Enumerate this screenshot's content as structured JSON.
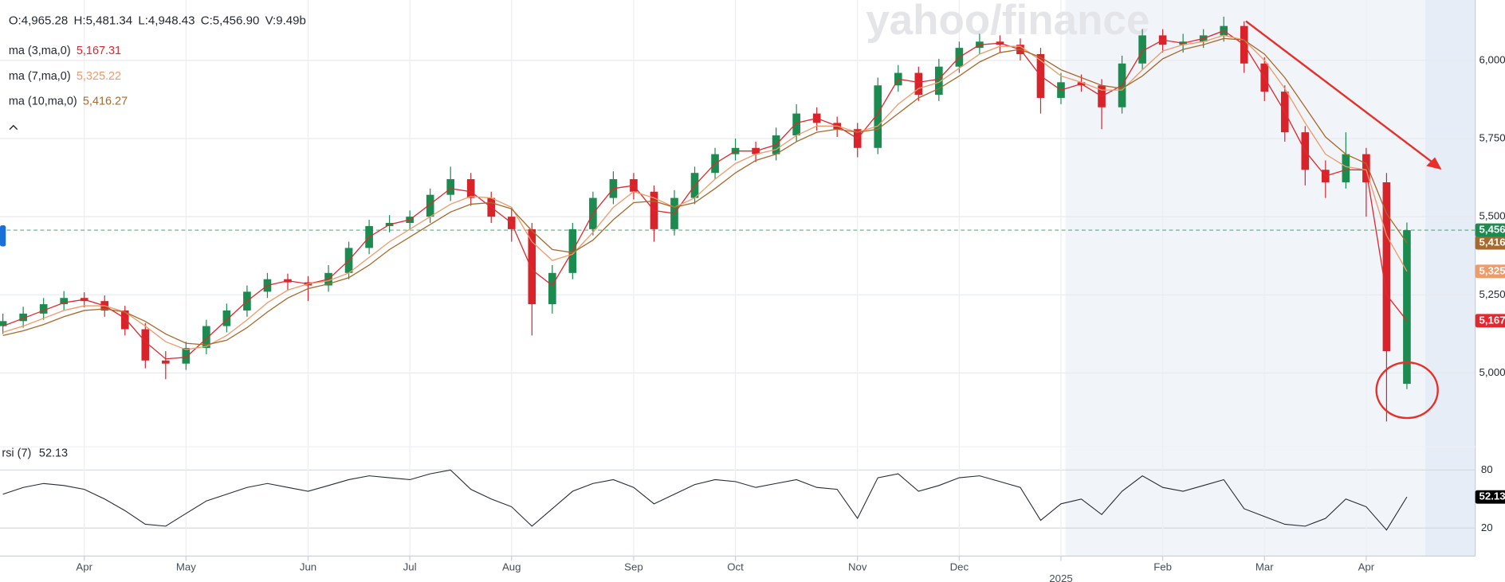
{
  "chart_data": {
    "type": "candlestick",
    "watermark": "yahoo/finance",
    "ohlcv_labels": [
      "O:4,965.28",
      "H:5,481.34",
      "L:4,948.43",
      "C:5,456.90",
      "V:9.49b"
    ],
    "categories": [
      null,
      null,
      null,
      null,
      "Apr",
      null,
      null,
      null,
      null,
      "May",
      null,
      null,
      null,
      null,
      null,
      "Jun",
      null,
      null,
      null,
      null,
      "Jul",
      null,
      null,
      null,
      null,
      "Aug",
      null,
      null,
      null,
      null,
      null,
      "Sep",
      null,
      null,
      null,
      null,
      "Oct",
      null,
      null,
      null,
      null,
      null,
      "Nov",
      null,
      null,
      null,
      null,
      "Dec",
      null,
      null,
      null,
      null,
      "2025",
      null,
      null,
      null,
      null,
      "Feb",
      null,
      null,
      null,
      null,
      "Mar",
      null,
      null,
      null,
      null,
      "Apr",
      null,
      null
    ],
    "open": [
      5150,
      5166,
      5190,
      5220,
      5240,
      5230,
      5200,
      5140,
      5040,
      5030,
      5080,
      5150,
      5200,
      5260,
      5300,
      5290,
      5280,
      5320,
      5400,
      5470,
      5480,
      5500,
      5570,
      5620,
      5560,
      5500,
      5460,
      5220,
      5320,
      5460,
      5560,
      5620,
      5580,
      5460,
      5560,
      5640,
      5700,
      5720,
      5700,
      5760,
      5830,
      5800,
      5780,
      5720,
      5920,
      5960,
      5890,
      5980,
      6040,
      6060,
      6050,
      6020,
      5880,
      5930,
      5920,
      5850,
      5990,
      6080,
      6050,
      6060,
      6080,
      6110,
      5990,
      5900,
      5770,
      5650,
      5610,
      5700,
      5610,
      4965.28
    ],
    "high": [
      5190,
      5212,
      5240,
      5262,
      5258,
      5248,
      5215,
      5160,
      5070,
      5100,
      5170,
      5222,
      5280,
      5320,
      5318,
      5310,
      5345,
      5420,
      5490,
      5505,
      5520,
      5590,
      5660,
      5640,
      5580,
      5530,
      5480,
      5345,
      5480,
      5580,
      5645,
      5640,
      5600,
      5585,
      5660,
      5720,
      5750,
      5740,
      5785,
      5860,
      5850,
      5820,
      5800,
      5945,
      5985,
      5980,
      6005,
      6060,
      6085,
      6080,
      6070,
      6040,
      5960,
      5955,
      5940,
      6015,
      6100,
      6100,
      6085,
      6100,
      6140,
      6125,
      6010,
      5920,
      5790,
      5680,
      5770,
      5720,
      5640,
      5481.34
    ],
    "low": [
      5125,
      5145,
      5170,
      5200,
      5210,
      5180,
      5120,
      5015,
      4980,
      5010,
      5060,
      5130,
      5180,
      5240,
      5265,
      5230,
      5260,
      5300,
      5380,
      5450,
      5460,
      5480,
      5550,
      5535,
      5480,
      5420,
      5120,
      5190,
      5300,
      5440,
      5540,
      5555,
      5420,
      5440,
      5540,
      5620,
      5680,
      5675,
      5680,
      5740,
      5775,
      5755,
      5690,
      5700,
      5900,
      5870,
      5870,
      5960,
      6020,
      6025,
      6000,
      5830,
      5860,
      5900,
      5780,
      5830,
      5970,
      6025,
      6025,
      6040,
      6060,
      5960,
      5870,
      5740,
      5600,
      5560,
      5590,
      5500,
      4845,
      4948.43
    ],
    "close": [
      5166,
      5190,
      5220,
      5240,
      5230,
      5200,
      5140,
      5040,
      5030,
      5080,
      5150,
      5200,
      5260,
      5300,
      5290,
      5280,
      5320,
      5400,
      5470,
      5480,
      5500,
      5570,
      5620,
      5560,
      5500,
      5460,
      5220,
      5320,
      5460,
      5560,
      5620,
      5580,
      5460,
      5560,
      5640,
      5700,
      5720,
      5700,
      5760,
      5830,
      5800,
      5780,
      5720,
      5920,
      5960,
      5890,
      5980,
      6040,
      6060,
      6050,
      6020,
      5880,
      5930,
      5920,
      5850,
      5990,
      6080,
      6050,
      6060,
      6080,
      6110,
      5990,
      5900,
      5770,
      5650,
      5610,
      5700,
      5610,
      5070,
      5456.9
    ],
    "close_label": "5,456.90",
    "up_color": "#1b8b4f",
    "down_color": "#d8232a",
    "ylim": [
      4767,
      6193
    ],
    "yticks": [
      {
        "value": 5000,
        "label": "5,000"
      },
      {
        "value": 5250,
        "label": "5,250"
      },
      {
        "value": 5500,
        "label": "5,500"
      },
      {
        "value": 5750,
        "label": "5,750"
      },
      {
        "value": 6000,
        "label": "6,000"
      }
    ],
    "grid": true,
    "series": [
      {
        "name": "ma (3,ma,0)",
        "color": "#e0282e",
        "last_label": "5,167.31",
        "values": [
          5150,
          5175,
          5200,
          5225,
          5235,
          5215,
          5175,
          5100,
          5045,
          5050,
          5110,
          5170,
          5230,
          5280,
          5295,
          5285,
          5300,
          5360,
          5435,
          5475,
          5490,
          5540,
          5590,
          5580,
          5530,
          5480,
          5330,
          5280,
          5390,
          5510,
          5590,
          5600,
          5520,
          5510,
          5600,
          5670,
          5710,
          5710,
          5730,
          5800,
          5815,
          5790,
          5750,
          5830,
          5940,
          5930,
          5940,
          6010,
          6050,
          6055,
          6035,
          5950,
          5905,
          5925,
          5885,
          5920,
          6030,
          6065,
          6055,
          6070,
          6095,
          6050,
          5945,
          5835,
          5710,
          5630,
          5650,
          5650,
          5250,
          5167.31
        ]
      },
      {
        "name": "ma (7,ma,0)",
        "color": "#f09a6a",
        "last_label": "5,325.22",
        "values": [
          5130,
          5150,
          5175,
          5200,
          5215,
          5215,
          5195,
          5150,
          5100,
          5075,
          5085,
          5120,
          5170,
          5225,
          5265,
          5285,
          5295,
          5320,
          5370,
          5420,
          5460,
          5500,
          5540,
          5565,
          5560,
          5530,
          5420,
          5360,
          5380,
          5450,
          5530,
          5580,
          5560,
          5530,
          5560,
          5620,
          5670,
          5700,
          5715,
          5760,
          5790,
          5790,
          5770,
          5790,
          5860,
          5910,
          5930,
          5975,
          6020,
          6045,
          6045,
          6000,
          5950,
          5930,
          5905,
          5905,
          5970,
          6030,
          6050,
          6060,
          6080,
          6065,
          6000,
          5910,
          5800,
          5700,
          5660,
          5650,
          5440,
          5325.22
        ]
      },
      {
        "name": "ma (10,ma,0)",
        "color": "#a86a2c",
        "last_label": "5,416.27",
        "values": [
          5120,
          5135,
          5155,
          5180,
          5200,
          5205,
          5195,
          5165,
          5125,
          5095,
          5090,
          5105,
          5145,
          5195,
          5240,
          5270,
          5285,
          5305,
          5345,
          5395,
          5435,
          5475,
          5515,
          5540,
          5545,
          5525,
          5455,
          5395,
          5385,
          5425,
          5490,
          5545,
          5550,
          5530,
          5545,
          5590,
          5640,
          5680,
          5700,
          5740,
          5770,
          5780,
          5770,
          5780,
          5830,
          5880,
          5910,
          5950,
          5995,
          6025,
          6035,
          6010,
          5970,
          5945,
          5920,
          5910,
          5950,
          6005,
          6035,
          6050,
          6070,
          6065,
          6020,
          5945,
          5850,
          5755,
          5700,
          5670,
          5510,
          5416.27
        ]
      }
    ],
    "rsi": {
      "type": "line",
      "name": "rsi (7)",
      "last_label": "52.13",
      "color": "#232a31",
      "values": [
        55,
        62,
        66,
        64,
        60,
        50,
        38,
        24,
        22,
        35,
        48,
        55,
        62,
        66,
        62,
        58,
        64,
        70,
        74,
        72,
        70,
        76,
        80,
        60,
        50,
        42,
        22,
        40,
        58,
        66,
        70,
        62,
        45,
        55,
        65,
        70,
        68,
        62,
        66,
        70,
        62,
        60,
        30,
        72,
        76,
        58,
        64,
        72,
        74,
        68,
        62,
        28,
        45,
        50,
        34,
        58,
        74,
        62,
        58,
        64,
        70,
        40,
        32,
        24,
        22,
        30,
        50,
        42,
        18,
        52.13
      ],
      "ylim": [
        0,
        100
      ],
      "yticks": [
        20,
        80
      ]
    }
  }
}
